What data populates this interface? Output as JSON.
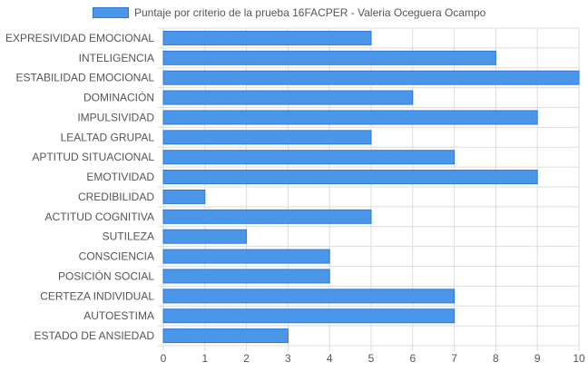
{
  "chart_data": {
    "type": "bar",
    "orientation": "horizontal",
    "categories": [
      "EXPRESIVIDAD EMOCIONAL",
      "INTELIGENCIA",
      "ESTABILIDAD EMOCIONAL",
      "DOMINACIÓN",
      "IMPULSIVIDAD",
      "LEALTAD GRUPAL",
      "APTITUD SITUACIONAL",
      "EMOTIVIDAD",
      "CREDIBILIDAD",
      "ACTITUD COGNITIVA",
      "SUTILEZA",
      "CONSCIENCIA",
      "POSICIÓN SOCIAL",
      "CERTEZA INDIVIDUAL",
      "AUTOESTIMA",
      "ESTADO DE ANSIEDAD"
    ],
    "series": [
      {
        "name": "Puntaje por criterio de la prueba 16FACPER - Valeria Oceguera Ocampo",
        "values": [
          5,
          8,
          10,
          6,
          9,
          5,
          7,
          9,
          1,
          5,
          2,
          4,
          4,
          7,
          7,
          3
        ]
      }
    ],
    "xlim": [
      0,
      10
    ],
    "xticks": [
      "0",
      "1",
      "2",
      "3",
      "4",
      "5",
      "6",
      "7",
      "8",
      "9",
      "10"
    ],
    "grid": true,
    "legend_position": "top",
    "colors": {
      "bar_fill": "#4a97ea",
      "bar_stroke": "#2f78d8",
      "grid": "#dddddd",
      "axis_text": "#555555"
    }
  }
}
